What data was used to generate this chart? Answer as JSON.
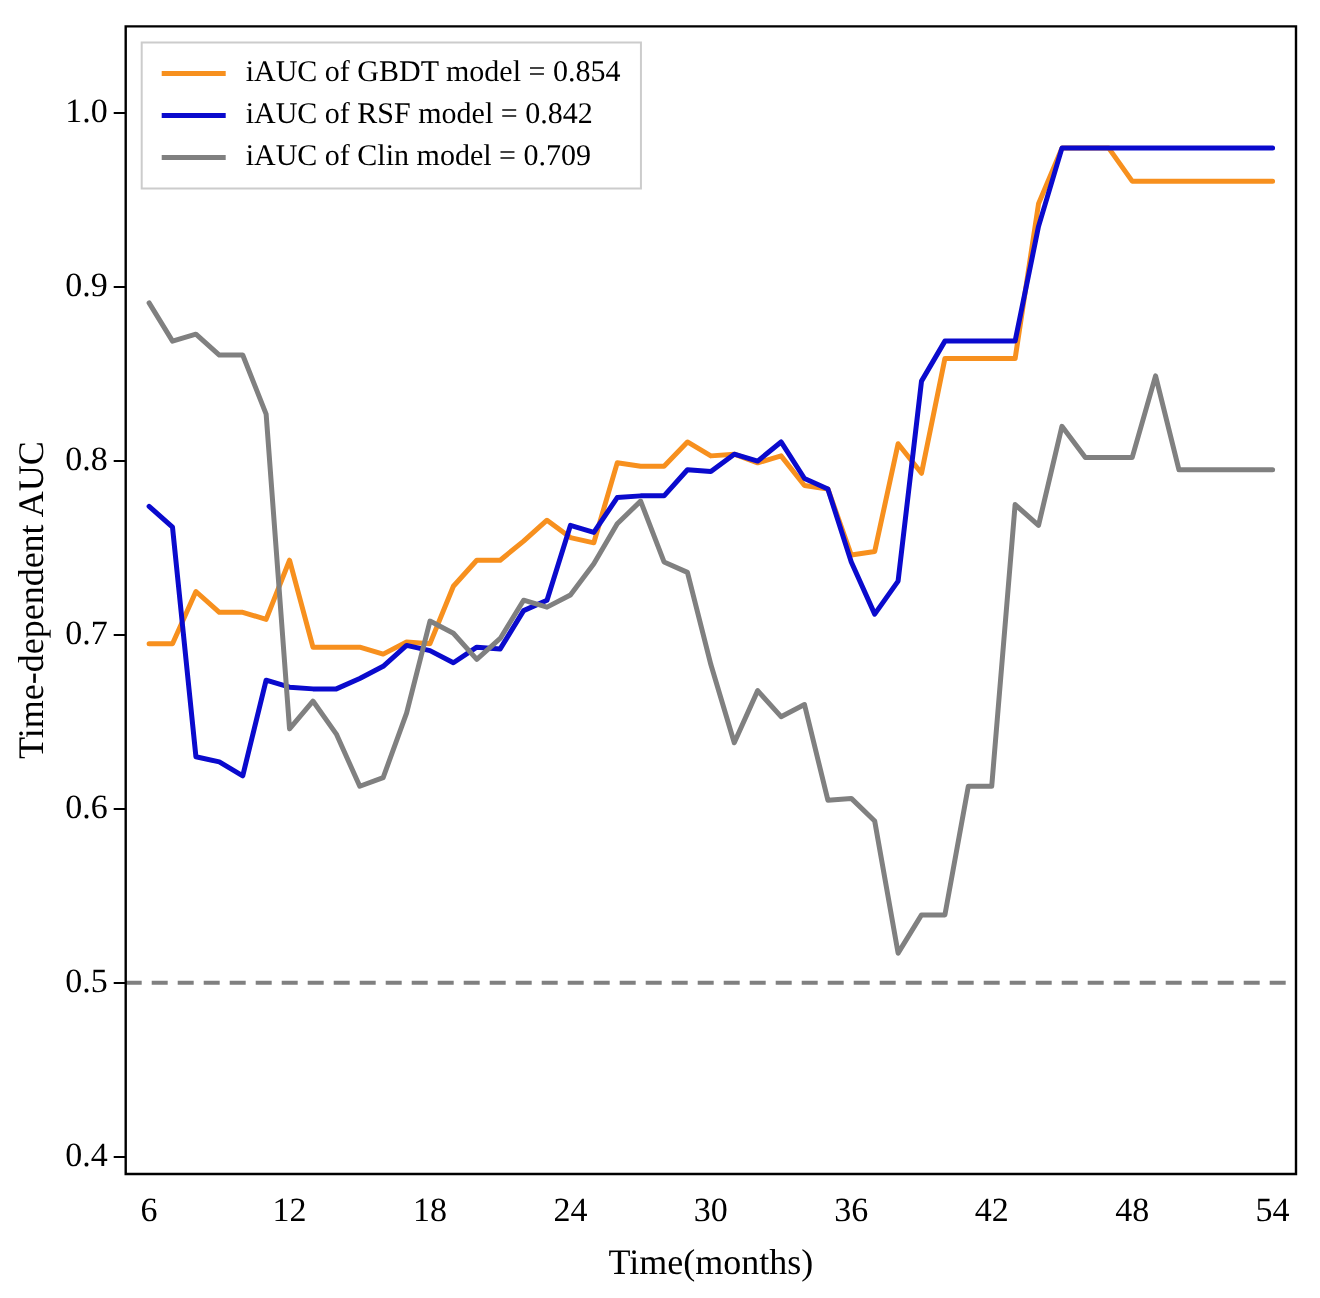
{
  "chart_data": {
    "type": "line",
    "xlabel": "Time(months)",
    "ylabel": "Time-dependent AUC",
    "x": [
      6,
      7,
      8,
      9,
      10,
      11,
      12,
      13,
      14,
      15,
      16,
      17,
      18,
      19,
      20,
      21,
      22,
      23,
      24,
      25,
      26,
      27,
      28,
      29,
      30,
      31,
      32,
      33,
      34,
      35,
      36,
      37,
      38,
      39,
      40,
      41,
      42,
      43,
      44,
      45,
      46,
      47,
      48,
      49,
      50,
      51,
      52,
      53,
      54
    ],
    "series": [
      {
        "name": "iAUC of GBDT model = 0.854",
        "color": "#f7901e",
        "values": [
          0.695,
          0.695,
          0.725,
          0.713,
          0.713,
          0.709,
          0.743,
          0.693,
          0.693,
          0.693,
          0.689,
          0.696,
          0.695,
          0.728,
          0.743,
          0.743,
          0.754,
          0.766,
          0.756,
          0.753,
          0.799,
          0.797,
          0.797,
          0.811,
          0.803,
          0.804,
          0.799,
          0.803,
          0.786,
          0.784,
          0.746,
          0.748,
          0.81,
          0.793,
          0.859,
          0.859,
          0.859,
          0.859,
          0.948,
          0.98,
          0.98,
          0.98,
          0.961,
          0.961,
          0.961,
          0.961,
          0.961,
          0.961,
          0.961
        ]
      },
      {
        "name": "iAUC of RSF model = 0.842",
        "color": "#0a0acd",
        "values": [
          0.774,
          0.762,
          0.63,
          0.627,
          0.619,
          0.674,
          0.67,
          0.669,
          0.669,
          0.675,
          0.682,
          0.694,
          0.691,
          0.684,
          0.693,
          0.692,
          0.714,
          0.72,
          0.763,
          0.759,
          0.779,
          0.78,
          0.78,
          0.795,
          0.794,
          0.804,
          0.8,
          0.811,
          0.79,
          0.784,
          0.742,
          0.712,
          0.731,
          0.846,
          0.869,
          0.869,
          0.869,
          0.869,
          0.935,
          0.98,
          0.98,
          0.98,
          0.98,
          0.98,
          0.98,
          0.98,
          0.98,
          0.98,
          0.98
        ]
      },
      {
        "name": "iAUC of Clin model = 0.709",
        "color": "#808080",
        "values": [
          0.891,
          0.869,
          0.873,
          0.861,
          0.861,
          0.827,
          0.646,
          0.662,
          0.643,
          0.613,
          0.618,
          0.655,
          0.708,
          0.701,
          0.686,
          0.698,
          0.72,
          0.716,
          0.723,
          0.741,
          0.764,
          0.777,
          0.742,
          0.736,
          0.683,
          0.638,
          0.668,
          0.653,
          0.66,
          0.605,
          0.606,
          0.593,
          0.517,
          0.539,
          0.539,
          0.613,
          0.613,
          0.775,
          0.763,
          0.82,
          0.802,
          0.802,
          0.802,
          0.849,
          0.795,
          0.795,
          0.795,
          0.795,
          0.795
        ]
      }
    ],
    "xlim": [
      5,
      55
    ],
    "xticks": [
      6,
      12,
      18,
      24,
      30,
      36,
      42,
      48,
      54
    ],
    "ylim": [
      0.39,
      1.05
    ],
    "yticks": [
      0.4,
      0.5,
      0.6,
      0.7,
      0.8,
      0.9,
      {
        "value": 1,
        "label": "1.0"
      }
    ],
    "ref_lines": [
      {
        "axis": "y",
        "value": 0.5,
        "color": "#808080",
        "line_style": "dashed"
      }
    ],
    "legend": "top left",
    "marker": "none",
    "line_style": "solid",
    "grid": false
  }
}
